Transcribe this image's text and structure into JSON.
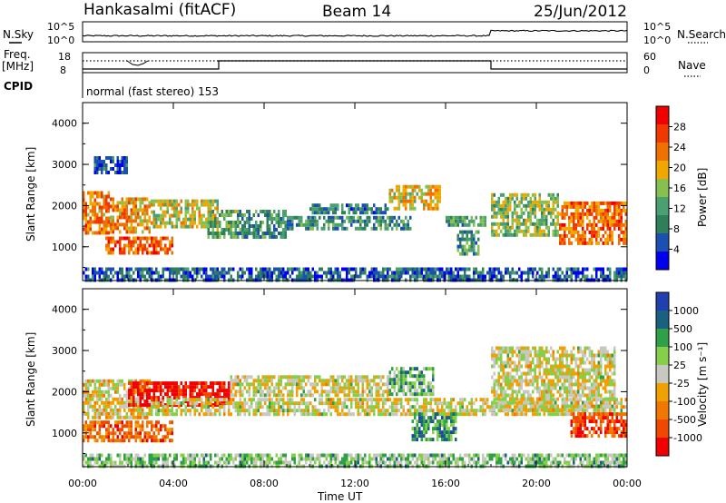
{
  "header": {
    "station": "Hankasalmi (fitACF)",
    "beam": "Beam 14",
    "date": "25/Jun/2012"
  },
  "strip_labels": {
    "nsky": "N.Sky",
    "nsky_ticks": [
      "10^5",
      "10^0"
    ],
    "nsearch": "N.Search",
    "nsearch_ticks": [
      "10^5",
      "10^0"
    ],
    "freq_line1": "Freq.",
    "freq_line2": "[MHz]",
    "freq_ticks": [
      "18",
      "8"
    ],
    "nave": "Nave",
    "nave_ticks": [
      "60",
      "0"
    ],
    "cpid": "CPID",
    "cpid_text": "normal (fast stereo) 153"
  },
  "colors": {
    "power": [
      "#0000f0",
      "#1a50b0",
      "#2f7f5a",
      "#4aa070",
      "#88c050",
      "#f0a800",
      "#f07000",
      "#f03800",
      "#f00000"
    ],
    "velocity": [
      "#f00000",
      "#f04800",
      "#f07800",
      "#f0a000",
      "#c8c8c0",
      "#86cf4a",
      "#30a048",
      "#1a6080",
      "#2040b0"
    ]
  },
  "chart_data": [
    {
      "type": "heatmap",
      "panel": "power",
      "ylabel": "Slant Range [km]",
      "yticks": [
        "4000",
        "3000",
        "2000",
        "1000"
      ],
      "ylim": [
        180,
        4500
      ],
      "xlim_hours": [
        0,
        24
      ],
      "xticks": [
        "00:00",
        "04:00",
        "08:00",
        "12:00",
        "16:00",
        "20:00",
        "00:00"
      ],
      "colorbar_label": "Power [dB]",
      "colorbar_ticks": [
        "28",
        "24",
        "20",
        "16",
        "12",
        "8",
        "4"
      ],
      "scatter_regions": [
        {
          "t0": 0.0,
          "t1": 1.2,
          "r0": 1300,
          "r1": 2350,
          "level": 0.72
        },
        {
          "t0": 1.2,
          "t1": 3.0,
          "r0": 1400,
          "r1": 2200,
          "level": 0.66
        },
        {
          "t0": 1.0,
          "t1": 4.0,
          "r0": 850,
          "r1": 1250,
          "level": 0.78
        },
        {
          "t0": 3.0,
          "t1": 6.0,
          "r0": 1500,
          "r1": 2150,
          "level": 0.55
        },
        {
          "t0": 5.5,
          "t1": 6.8,
          "r0": 1200,
          "r1": 1900,
          "level": 0.4
        },
        {
          "t0": 6.8,
          "t1": 9.0,
          "r0": 1200,
          "r1": 1900,
          "level": 0.32
        },
        {
          "t0": 9.0,
          "t1": 14.5,
          "r0": 1400,
          "r1": 1750,
          "level": 0.3
        },
        {
          "t0": 10.0,
          "t1": 13.5,
          "r0": 1850,
          "r1": 2050,
          "level": 0.25
        },
        {
          "t0": 13.5,
          "t1": 15.8,
          "r0": 1900,
          "r1": 2500,
          "level": 0.58
        },
        {
          "t0": 16.0,
          "t1": 17.8,
          "r0": 1500,
          "r1": 1750,
          "level": 0.38
        },
        {
          "t0": 16.5,
          "t1": 17.5,
          "r0": 850,
          "r1": 1400,
          "level": 0.35
        },
        {
          "t0": 18.0,
          "t1": 21.0,
          "r0": 1300,
          "r1": 2300,
          "level": 0.48
        },
        {
          "t0": 21.0,
          "t1": 24.0,
          "r0": 1100,
          "r1": 2100,
          "level": 0.75
        },
        {
          "t0": 0.5,
          "t1": 2.0,
          "r0": 2800,
          "r1": 3200,
          "level": 0.2
        },
        {
          "t0": 0.0,
          "t1": 24.0,
          "r0": 200,
          "r1": 500,
          "level": 0.2
        }
      ]
    },
    {
      "type": "heatmap",
      "panel": "velocity",
      "ylabel": "Slant Range [km]",
      "yticks": [
        "4000",
        "3000",
        "2000",
        "1000"
      ],
      "ylim": [
        180,
        4500
      ],
      "xlim_hours": [
        0,
        24
      ],
      "xticks": [
        "00:00",
        "04:00",
        "08:00",
        "12:00",
        "16:00",
        "20:00",
        "00:00"
      ],
      "xlabel": "Time UT",
      "colorbar_label": "Velocity [m s⁻¹]",
      "colorbar_ticks": [
        "1000",
        "500",
        "100",
        "25",
        "-25",
        "-100",
        "-500",
        "-1000"
      ],
      "scatter_regions": [
        {
          "t0": 0.0,
          "t1": 3.0,
          "r0": 1350,
          "r1": 2300,
          "level": 0.45
        },
        {
          "t0": 2.0,
          "t1": 6.5,
          "r0": 1700,
          "r1": 2250,
          "level": 0.05
        },
        {
          "t0": 0.0,
          "t1": 4.0,
          "r0": 850,
          "r1": 1300,
          "level": 0.22
        },
        {
          "t0": 3.0,
          "t1": 24.0,
          "r0": 1450,
          "r1": 1850,
          "level": 0.5
        },
        {
          "t0": 6.5,
          "t1": 13.5,
          "r0": 1900,
          "r1": 2400,
          "level": 0.5
        },
        {
          "t0": 13.5,
          "t1": 15.5,
          "r0": 1900,
          "r1": 2600,
          "level": 0.66
        },
        {
          "t0": 14.5,
          "t1": 16.5,
          "r0": 800,
          "r1": 1500,
          "level": 0.75
        },
        {
          "t0": 18.0,
          "t1": 23.5,
          "r0": 1600,
          "r1": 3100,
          "level": 0.5
        },
        {
          "t0": 21.5,
          "t1": 24.0,
          "r0": 900,
          "r1": 1500,
          "level": 0.15
        },
        {
          "t0": 0.0,
          "t1": 24.0,
          "r0": 200,
          "r1": 500,
          "level": 0.62
        }
      ]
    }
  ]
}
